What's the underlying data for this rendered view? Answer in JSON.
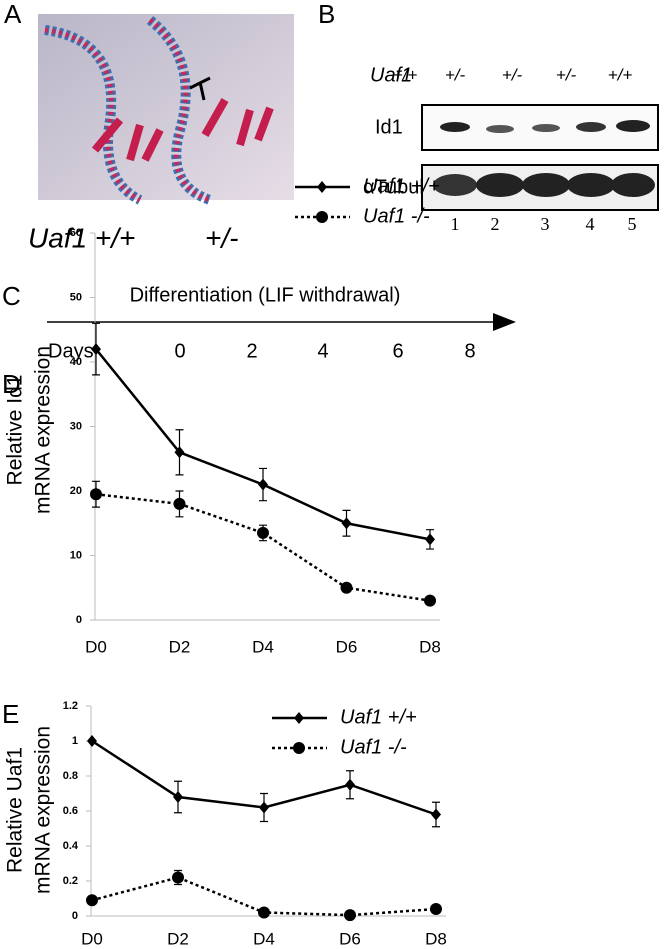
{
  "panel_labels": [
    "A",
    "B",
    "C",
    "D",
    "E"
  ],
  "panel_a": {
    "genotype_left": "Uaf1 +/+",
    "genotype_right": "+/-"
  },
  "panel_b": {
    "gene": "Uaf1",
    "genotypes": [
      "+/+",
      "+/-",
      "+/-",
      "+/-",
      "+/+"
    ],
    "rows": [
      "Id1",
      "αTubulin"
    ],
    "lanes": [
      1,
      2,
      3,
      4,
      5
    ]
  },
  "panel_c": {
    "title": "Differentiation (LIF withdrawal)",
    "days_label": "Days",
    "days": [
      0,
      2,
      4,
      6,
      8
    ]
  },
  "chart_data": [
    {
      "type": "line",
      "y_label": [
        "Relative Id1",
        "mRNA expression"
      ],
      "categories": [
        "D0",
        "D2",
        "D4",
        "D6",
        "D8"
      ],
      "series": [
        {
          "name": "Uaf1 +/+",
          "color": "#000000",
          "dash": "solid",
          "marker": "diamond",
          "values": [
            42,
            26,
            21,
            15,
            12.5
          ],
          "errors": [
            4,
            3.5,
            2.5,
            2,
            1.5
          ]
        },
        {
          "name": "Uaf1 -/-",
          "color": "#000000",
          "dash": "dotted",
          "marker": "circle",
          "values": [
            19.5,
            18,
            13.5,
            5,
            3
          ],
          "errors": [
            2,
            2,
            1.2,
            0.6,
            0.5
          ]
        }
      ],
      "ylim": [
        0,
        60
      ],
      "yticks": [
        0,
        10,
        20,
        30,
        40,
        50,
        60
      ]
    },
    {
      "type": "line",
      "y_label": [
        "Relative Uaf1",
        "mRNA expression"
      ],
      "categories": [
        "D0",
        "D2",
        "D4",
        "D6",
        "D8"
      ],
      "series": [
        {
          "name": "Uaf1 +/+",
          "color": "#000000",
          "dash": "solid",
          "marker": "diamond",
          "values": [
            1,
            0.68,
            0.62,
            0.75,
            0.58
          ],
          "errors": [
            0,
            0.09,
            0.08,
            0.08,
            0.07
          ]
        },
        {
          "name": "Uaf1 -/-",
          "color": "#000000",
          "dash": "dotted",
          "marker": "circle",
          "values": [
            0.09,
            0.22,
            0.02,
            0.005,
            0.04
          ],
          "errors": [
            0.02,
            0.04,
            0.01,
            0.005,
            0.01
          ]
        }
      ],
      "ylim": [
        0,
        1.2
      ],
      "yticks": [
        0,
        0.2,
        0.4,
        0.6,
        0.8,
        1,
        1.2
      ]
    }
  ]
}
